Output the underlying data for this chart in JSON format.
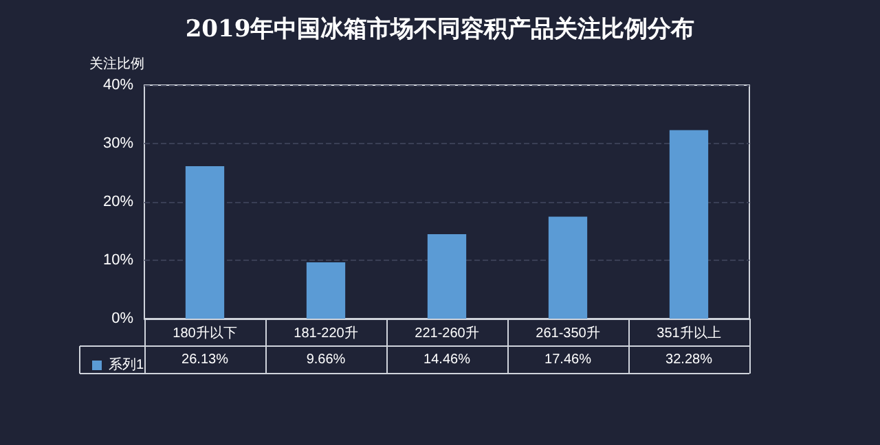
{
  "chart_data": {
    "type": "bar",
    "title": "2019年中国冰箱市场不同容积产品关注比例分布",
    "ylabel": "关注比例",
    "categories": [
      "180升以下",
      "181-220升",
      "221-260升",
      "261-350升",
      "351升以上"
    ],
    "series": [
      {
        "name": "系列1",
        "color": "#5b9bd5",
        "values": [
          26.13,
          9.66,
          14.46,
          17.46,
          32.28
        ],
        "value_labels": [
          "26.13%",
          "9.66%",
          "14.46%",
          "17.46%",
          "32.28%"
        ]
      }
    ],
    "ylim": [
      0,
      40
    ],
    "yticks": [
      {
        "value": 0,
        "label": "0%"
      },
      {
        "value": 10,
        "label": "10%"
      },
      {
        "value": 20,
        "label": "20%"
      },
      {
        "value": 30,
        "label": "30%"
      },
      {
        "value": 40,
        "label": "40%"
      }
    ],
    "grid": "y",
    "legend": "bottom left"
  }
}
